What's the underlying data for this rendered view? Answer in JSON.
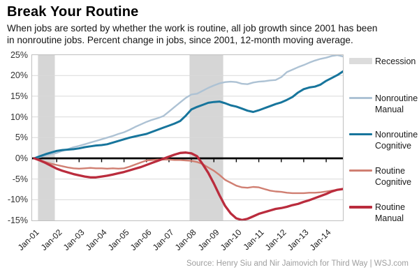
{
  "header": {
    "title": "Break Your Routine",
    "subtitle": "When jobs are sorted by whether the work is routine, all job growth since 2001 has been\nin nonroutine jobs. Percent change in jobs, since 2001, 12-month moving average."
  },
  "chart_data": {
    "type": "line",
    "title": "Break Your Routine",
    "ylabel": "Percent change in jobs since 2001 (12-month moving average)",
    "ylim": [
      -15,
      25
    ],
    "grid": "horizontal",
    "legend_position": "right",
    "y_tick_labels": [
      "25%",
      "20%",
      "15%",
      "10%",
      "5%",
      "0%",
      "-5%",
      "-10%",
      "-15%"
    ],
    "x_tick_labels": [
      "Jan-01",
      "Jan-02",
      "Jan-03",
      "Jan-04",
      "Jan-05",
      "Jan-06",
      "Jan-07",
      "Jan-08",
      "Jan-09",
      "Jan-10",
      "Jan-11",
      "Jan-12",
      "Jan-13",
      "Jan-14"
    ],
    "x_start": "Jan-2001",
    "x_end": "Nov-2014",
    "sample_interval_months": 3,
    "recession_bands_months": [
      [
        2,
        11
      ],
      [
        83,
        101
      ]
    ],
    "recession_color": "#d6d6d6",
    "zero_axis_color": "#000000",
    "series": [
      {
        "id": "nonroutine_manual",
        "name": "Nonroutine Manual",
        "color": "#adc2d4",
        "line_width": 2.4,
        "values": [
          0.0,
          0.3,
          0.7,
          1.0,
          1.3,
          1.8,
          2.2,
          2.7,
          3.0,
          3.4,
          3.8,
          4.2,
          4.6,
          5.0,
          5.4,
          5.9,
          6.3,
          6.9,
          7.6,
          8.2,
          8.8,
          9.3,
          9.7,
          10.2,
          11.3,
          12.4,
          13.5,
          14.6,
          15.4,
          15.6,
          16.3,
          17.0,
          17.6,
          18.1,
          18.4,
          18.5,
          18.4,
          18.0,
          17.9,
          18.3,
          18.5,
          18.6,
          18.8,
          18.9,
          19.6,
          20.8,
          21.4,
          22.0,
          22.5,
          23.1,
          23.6,
          24.0,
          24.3,
          24.7,
          24.9,
          24.6
        ]
      },
      {
        "id": "nonroutine_cognitive",
        "name": "Nonroutine Cognitive",
        "color": "#17759c",
        "line_width": 3.0,
        "values": [
          0.0,
          0.5,
          1.0,
          1.4,
          1.8,
          2.0,
          2.1,
          2.2,
          2.4,
          2.7,
          2.9,
          3.1,
          3.2,
          3.4,
          3.8,
          4.2,
          4.6,
          5.0,
          5.3,
          5.6,
          5.9,
          6.4,
          6.9,
          7.4,
          7.9,
          8.4,
          9.0,
          10.3,
          11.8,
          12.4,
          12.9,
          13.4,
          13.6,
          13.7,
          13.3,
          12.8,
          12.5,
          12.0,
          11.5,
          11.2,
          11.6,
          12.1,
          12.6,
          13.1,
          13.5,
          14.1,
          14.8,
          15.9,
          16.7,
          17.1,
          17.3,
          17.8,
          18.7,
          19.4,
          20.1,
          21.0
        ]
      },
      {
        "id": "routine_cognitive",
        "name": "Routine Cognitive",
        "color": "#d07f72",
        "line_width": 2.4,
        "values": [
          0.0,
          -0.4,
          -0.9,
          -1.3,
          -1.6,
          -1.9,
          -2.2,
          -2.4,
          -2.5,
          -2.4,
          -2.3,
          -2.4,
          -2.4,
          -2.5,
          -2.4,
          -2.5,
          -2.4,
          -2.0,
          -1.5,
          -1.0,
          -0.5,
          -0.4,
          -0.3,
          -0.3,
          -0.3,
          -0.4,
          -0.4,
          -0.5,
          -0.6,
          -0.9,
          -1.4,
          -2.2,
          -3.0,
          -4.0,
          -5.2,
          -5.9,
          -6.6,
          -7.0,
          -7.1,
          -6.9,
          -7.0,
          -7.4,
          -7.8,
          -8.0,
          -8.1,
          -8.3,
          -8.4,
          -8.4,
          -8.4,
          -8.3,
          -8.3,
          -8.2,
          -8.0,
          -7.8,
          -7.6,
          -7.3
        ]
      },
      {
        "id": "routine_manual",
        "name": "Routine Manual",
        "color": "#ba2c3d",
        "line_width": 3.3,
        "values": [
          0.0,
          -0.5,
          -1.1,
          -1.8,
          -2.5,
          -3.0,
          -3.4,
          -3.8,
          -4.1,
          -4.4,
          -4.6,
          -4.6,
          -4.4,
          -4.2,
          -3.9,
          -3.6,
          -3.3,
          -2.9,
          -2.5,
          -2.1,
          -1.6,
          -1.1,
          -0.6,
          -0.1,
          0.4,
          0.9,
          1.3,
          1.4,
          1.2,
          0.5,
          -1.4,
          -3.5,
          -6.1,
          -8.9,
          -11.5,
          -13.3,
          -14.5,
          -14.9,
          -14.6,
          -14.0,
          -13.4,
          -13.0,
          -12.6,
          -12.2,
          -12.0,
          -11.7,
          -11.3,
          -11.0,
          -10.5,
          -10.1,
          -9.6,
          -9.1,
          -8.6,
          -8.0,
          -7.6,
          -7.4
        ]
      }
    ]
  },
  "legend": {
    "items": [
      {
        "label": "Recession",
        "color": "#dcdcdc",
        "swatch": "band",
        "swatch_height": 9
      },
      {
        "label": "Nonroutine Manual",
        "color": "#adc2d4",
        "swatch": "line",
        "swatch_height": 3
      },
      {
        "label": "Nonroutine Cognitive",
        "color": "#17759c",
        "swatch": "line",
        "swatch_height": 3
      },
      {
        "label": "Routine Cognitive",
        "color": "#d07f72",
        "swatch": "line",
        "swatch_height": 3
      },
      {
        "label": "Routine Manual",
        "color": "#ba2c3d",
        "swatch": "line",
        "swatch_height": 4
      }
    ]
  },
  "footer": {
    "source": "Source: Henry Siu and Nir Jaimovich for Third Way  |  WSJ.com"
  }
}
